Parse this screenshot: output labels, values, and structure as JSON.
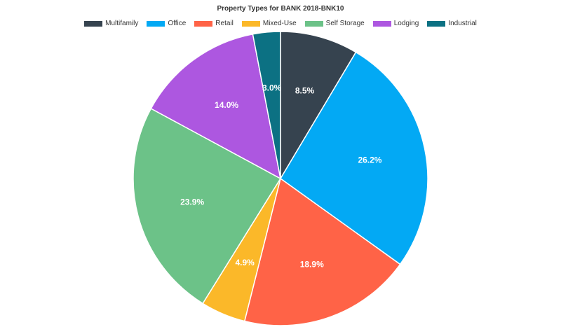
{
  "chart_data": {
    "type": "pie",
    "title": "Property Types for BANK 2018-BNK10",
    "legend_position": "top",
    "categories": [
      "Multifamily",
      "Office",
      "Retail",
      "Mixed-Use",
      "Self Storage",
      "Lodging",
      "Industrial"
    ],
    "values": [
      8.5,
      26.2,
      18.9,
      4.9,
      23.9,
      14.0,
      3.0
    ],
    "labels": [
      "8.5%",
      "26.2%",
      "18.9%",
      "4.9%",
      "23.9%",
      "14.0%",
      "3.0%"
    ],
    "colors": [
      "#36434f",
      "#03a9f4",
      "#ff6347",
      "#fbb829",
      "#6cc288",
      "#ad57e0",
      "#0c7183"
    ]
  }
}
